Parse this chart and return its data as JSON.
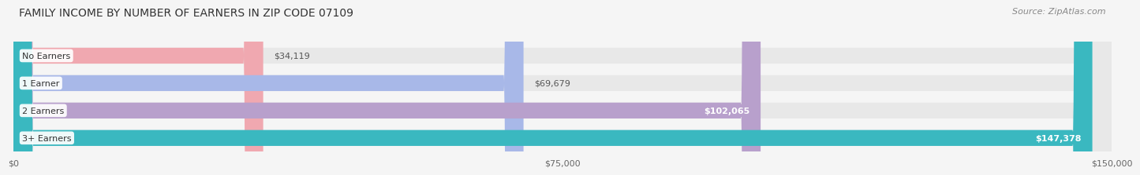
{
  "title": "FAMILY INCOME BY NUMBER OF EARNERS IN ZIP CODE 07109",
  "source": "Source: ZipAtlas.com",
  "categories": [
    "No Earners",
    "1 Earner",
    "2 Earners",
    "3+ Earners"
  ],
  "values": [
    34119,
    69679,
    102065,
    147378
  ],
  "labels": [
    "$34,119",
    "$69,679",
    "$102,065",
    "$147,378"
  ],
  "bar_colors": [
    "#f0a8b0",
    "#a8b8e8",
    "#b8a0cc",
    "#3ab8c0"
  ],
  "max_value": 150000,
  "x_ticks": [
    0,
    75000,
    150000
  ],
  "x_tick_labels": [
    "$0",
    "$75,000",
    "$150,000"
  ],
  "background_color": "#f5f5f5",
  "bar_bg_color": "#e8e8e8",
  "title_fontsize": 10,
  "source_fontsize": 8,
  "label_fontsize": 8,
  "tick_fontsize": 8,
  "category_fontsize": 8,
  "label_inside_threshold": 0.62
}
